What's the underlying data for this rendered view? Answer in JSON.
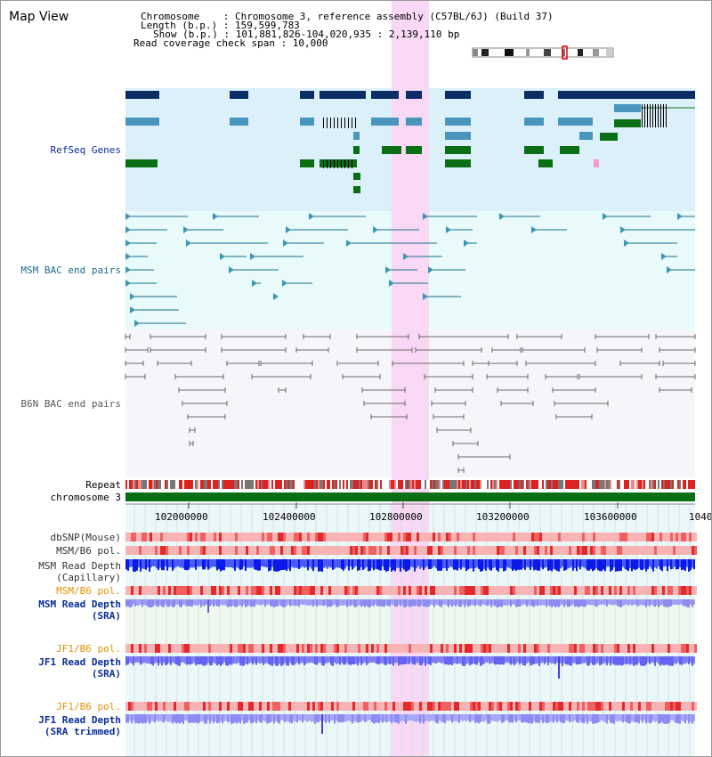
{
  "view_title": "Map View",
  "info": {
    "chromosome": "Chromosome    : Chromosome 3, reference assembly (C57BL/6J) (Build 37)",
    "length": "Length (b.p.) : 159,599,783",
    "show": "Show (b.p.) : 101,881,826-104,020,935 : 2,139,110 bp",
    "coverage": "Read coverage check span : 10,000"
  },
  "tracks": {
    "refseq": "RefSeq Genes",
    "msm_bac": "MSM BAC end pairs",
    "b6n_bac": "B6N BAC end pairs",
    "repeat": "Repeat",
    "chromosome": "chromosome 3"
  },
  "axis_ticks": [
    "102000000",
    "102400000",
    "102800000",
    "103200000",
    "103600000",
    "1040"
  ],
  "lower_tracks": {
    "dbsnp": "dbSNP(Mouse)",
    "msm_b6_pol_1": "MSM/B6 pol.",
    "msm_depth_cap_1": "MSM Read Depth",
    "msm_depth_cap_2": "(Capillary)",
    "msm_b6_pol_2": "MSM/B6 pol.",
    "msm_depth_sra_1": "MSM Read Depth",
    "msm_depth_sra_2": "(SRA)",
    "jf1_b6_pol_1": "JF1/B6 pol.",
    "jf1_depth_sra_1": "JF1 Read Depth",
    "jf1_depth_sra_2": "(SRA)",
    "jf1_b6_pol_2": "JF1/B6 pol.",
    "jf1_depth_trim_1": "JF1 Read Depth",
    "jf1_depth_trim_2": "(SRA trimmed)"
  },
  "colors": {
    "refseq_bg": "#dcf0fa",
    "bac_bg": "#e8fafa",
    "b6n_bg": "#f6f6fa",
    "highlight": "#f8d8f4",
    "gene_dark": "#0a2d64",
    "gene_mid": "#4896be",
    "gene_green": "#0a6e14",
    "msm_line": "#1a6e8c",
    "b6n_line": "#6a6a6a",
    "orange_label": "#e89000",
    "blue_label": "#0a2d9a"
  }
}
